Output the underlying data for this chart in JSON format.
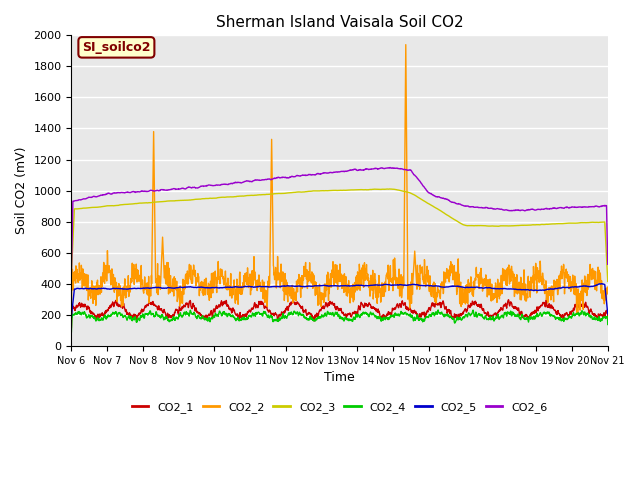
{
  "title": "Sherman Island Vaisala Soil CO2",
  "ylabel": "Soil CO2 (mV)",
  "xlabel": "Time",
  "ylim": [
    0,
    2000
  ],
  "yticks": [
    0,
    200,
    400,
    600,
    800,
    1000,
    1200,
    1400,
    1600,
    1800,
    2000
  ],
  "bg_color": "#e8e8e8",
  "watermark_text": "SI_soilco2",
  "watermark_bg": "#ffffcc",
  "watermark_fg": "#800000",
  "legend_entries": [
    "CO2_1",
    "CO2_2",
    "CO2_3",
    "CO2_4",
    "CO2_5",
    "CO2_6"
  ],
  "line_colors": [
    "#cc0000",
    "#ff9900",
    "#cccc00",
    "#00cc00",
    "#0000cc",
    "#9900cc"
  ],
  "xtick_labels": [
    "Nov 6",
    "Nov 7",
    "Nov 8",
    "Nov 9",
    "Nov 10",
    "Nov 11",
    "Nov 12",
    "Nov 13",
    "Nov 14",
    "Nov 15",
    "Nov 16",
    "Nov 17",
    "Nov 18",
    "Nov 19",
    "Nov 20",
    "Nov 21"
  ],
  "n_days": 15,
  "pts_per_day": 144
}
